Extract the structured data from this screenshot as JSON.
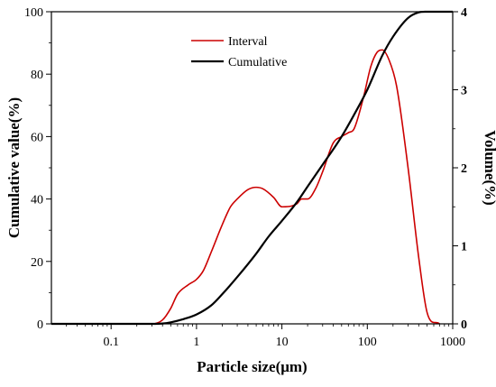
{
  "chart_data": {
    "type": "line",
    "xlabel": "Particle size(μm)",
    "ylabel": "Cumulative value(%)",
    "y2label": "Volume(%)",
    "x_scale": "log",
    "xlim": [
      0.02,
      1000
    ],
    "ylim": [
      0,
      100
    ],
    "y2lim": [
      0,
      4
    ],
    "grid": false,
    "legend_position": "top-center",
    "x_ticks": [
      "0.1",
      "1",
      "10",
      "100",
      "1000"
    ],
    "y_ticks": [
      "0",
      "20",
      "40",
      "60",
      "80",
      "100"
    ],
    "y2_ticks": [
      "0",
      "1",
      "2",
      "3",
      "4"
    ],
    "series": [
      {
        "name": "Interval",
        "color": "#cc0000",
        "axis": "right",
        "x": [
          0.02,
          0.3,
          0.4,
          0.5,
          0.6,
          0.8,
          1.0,
          1.2,
          1.5,
          2.0,
          2.5,
          3.0,
          4.0,
          5.0,
          6.0,
          8.0,
          10.0,
          13.0,
          15.0,
          17.0,
          20.0,
          25.0,
          30.0,
          40.0,
          50.0,
          60.0,
          70.0,
          90.0,
          110.0,
          130.0,
          150.0,
          180.0,
          220.0,
          300.0,
          400.0,
          500.0,
          700.0
        ],
        "y": [
          0.0,
          0.0,
          0.05,
          0.2,
          0.38,
          0.5,
          0.57,
          0.68,
          0.93,
          1.27,
          1.5,
          1.6,
          1.72,
          1.75,
          1.73,
          1.62,
          1.5,
          1.51,
          1.54,
          1.6,
          1.6,
          1.74,
          1.95,
          2.32,
          2.4,
          2.45,
          2.5,
          2.9,
          3.3,
          3.48,
          3.51,
          3.38,
          3.05,
          2.0,
          0.85,
          0.15,
          0.0
        ]
      },
      {
        "name": "Cumulative",
        "color": "#000000",
        "axis": "left",
        "x": [
          0.02,
          0.3,
          0.4,
          0.5,
          0.7,
          1.0,
          1.5,
          2.0,
          3.0,
          5.0,
          7.0,
          10.0,
          15.0,
          20.0,
          30.0,
          50.0,
          70.0,
          100.0,
          150.0,
          200.0,
          300.0,
          400.0,
          500.0,
          1000.0
        ],
        "y": [
          0.0,
          0.0,
          0.1,
          0.5,
          1.5,
          3.0,
          6.0,
          9.5,
          15.0,
          22.5,
          28.0,
          33.0,
          39.0,
          44.0,
          51.0,
          60.0,
          67.0,
          75.0,
          86.0,
          92.0,
          98.0,
          99.8,
          100.0,
          100.0
        ]
      }
    ]
  }
}
